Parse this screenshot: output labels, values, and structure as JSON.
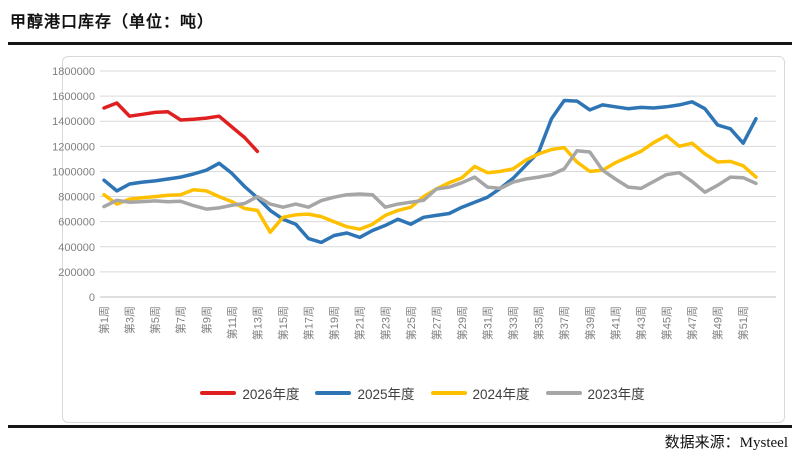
{
  "page": {
    "title": "甲醇港口库存（单位：吨）",
    "source": "数据来源：Mysteel"
  },
  "colors": {
    "red_2026": "#e02020",
    "blue_2025": "#2e75b6",
    "gold_2024": "#ffc000",
    "gray_2023": "#a6a6a6",
    "gridline": "#d9d9d9",
    "axis_text": "#7f7f7f",
    "rule": "#161616"
  },
  "chart_data": {
    "type": "line",
    "title": "甲醇港口库存（单位：吨）",
    "unit": "吨",
    "grid": "horizontal",
    "legend_position": "bottom",
    "ylim": [
      0,
      1800000
    ],
    "y_tick_step": 200000,
    "y_tick_labels": [
      "0",
      "200000",
      "400000",
      "600000",
      "800000",
      "1000000",
      "1200000",
      "1400000",
      "1600000",
      "1800000"
    ],
    "weeks_total": 52,
    "x_tick_labels": [
      "第1周",
      "第3周",
      "第5周",
      "第7周",
      "第9周",
      "第11周",
      "第13周",
      "第15周",
      "第17周",
      "第19周",
      "第21周",
      "第23周",
      "第25周",
      "第27周",
      "第29周",
      "第31周",
      "第33周",
      "第35周",
      "第37周",
      "第39周",
      "第41周",
      "第43周",
      "第45周",
      "第47周",
      "第49周",
      "第51周"
    ],
    "series": [
      {
        "name": "2026年度",
        "color": "#e02020",
        "start_week": 1,
        "values": [
          1505000,
          1545000,
          1440000,
          1455000,
          1470000,
          1475000,
          1410000,
          1415000,
          1425000,
          1440000,
          1355000,
          1270000,
          1160000
        ]
      },
      {
        "name": "2025年度",
        "color": "#2e75b6",
        "start_week": 1,
        "values": [
          930000,
          845000,
          900000,
          915000,
          925000,
          940000,
          955000,
          980000,
          1010000,
          1065000,
          985000,
          880000,
          790000,
          690000,
          620000,
          580000,
          465000,
          435000,
          490000,
          510000,
          475000,
          530000,
          570000,
          620000,
          580000,
          635000,
          650000,
          665000,
          715000,
          755000,
          795000,
          865000,
          945000,
          1050000,
          1155000,
          1420000,
          1565000,
          1560000,
          1490000,
          1530000,
          1515000,
          1500000,
          1510000,
          1505000,
          1515000,
          1530000,
          1555000,
          1500000,
          1370000,
          1340000,
          1225000,
          1420000
        ]
      },
      {
        "name": "2024年度",
        "color": "#ffc000",
        "start_week": 1,
        "values": [
          815000,
          740000,
          780000,
          790000,
          800000,
          810000,
          815000,
          855000,
          845000,
          800000,
          760000,
          705000,
          690000,
          515000,
          635000,
          655000,
          660000,
          640000,
          600000,
          560000,
          540000,
          580000,
          650000,
          690000,
          715000,
          800000,
          860000,
          910000,
          950000,
          1040000,
          990000,
          1000000,
          1020000,
          1090000,
          1140000,
          1175000,
          1190000,
          1075000,
          1000000,
          1010000,
          1070000,
          1115000,
          1160000,
          1230000,
          1285000,
          1200000,
          1225000,
          1140000,
          1075000,
          1080000,
          1045000,
          955000
        ]
      },
      {
        "name": "2023年度",
        "color": "#a6a6a6",
        "start_week": 1,
        "values": [
          720000,
          770000,
          755000,
          760000,
          765000,
          758000,
          762000,
          728000,
          700000,
          710000,
          730000,
          745000,
          800000,
          740000,
          715000,
          740000,
          715000,
          768000,
          795000,
          815000,
          820000,
          815000,
          715000,
          740000,
          755000,
          770000,
          860000,
          875000,
          910000,
          955000,
          875000,
          865000,
          915000,
          940000,
          955000,
          975000,
          1020000,
          1165000,
          1155000,
          1010000,
          940000,
          875000,
          865000,
          920000,
          975000,
          990000,
          920000,
          835000,
          890000,
          955000,
          950000,
          905000
        ]
      }
    ]
  }
}
